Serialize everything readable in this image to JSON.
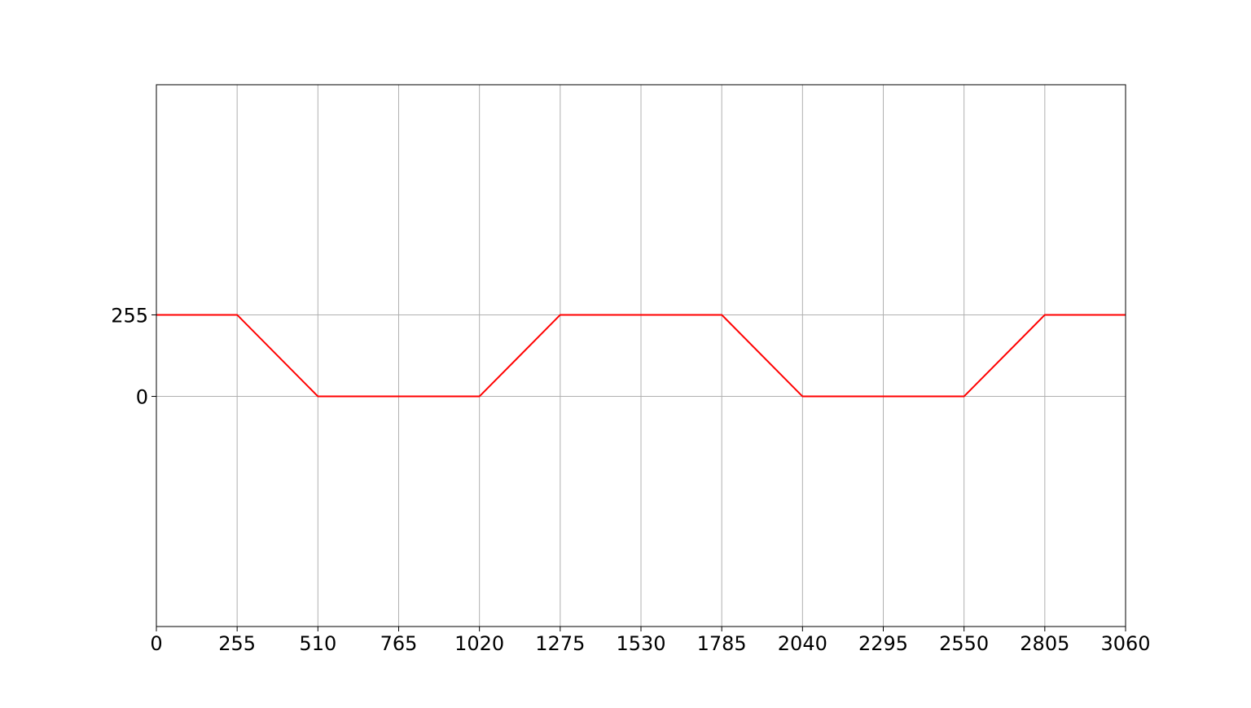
{
  "chart_data": {
    "type": "line",
    "x": [
      0,
      255,
      510,
      765,
      1020,
      1275,
      1530,
      1785,
      2040,
      2295,
      2550,
      2805,
      3060
    ],
    "series": [
      {
        "values": [
          255,
          255,
          0,
          0,
          0,
          255,
          255,
          255,
          0,
          0,
          0,
          255,
          255
        ],
        "color": "#ff0000"
      }
    ],
    "xticks": [
      "0",
      "255",
      "510",
      "765",
      "1020",
      "1275",
      "1530",
      "1785",
      "2040",
      "2295",
      "2550",
      "2805",
      "3060"
    ],
    "yticks": [
      "0",
      "255"
    ],
    "xlim": [
      0,
      3060
    ],
    "ylim": [
      -720,
      975
    ],
    "grid": true,
    "grid_color": "#b0b0b0",
    "title": "",
    "xlabel": "",
    "ylabel": ""
  }
}
